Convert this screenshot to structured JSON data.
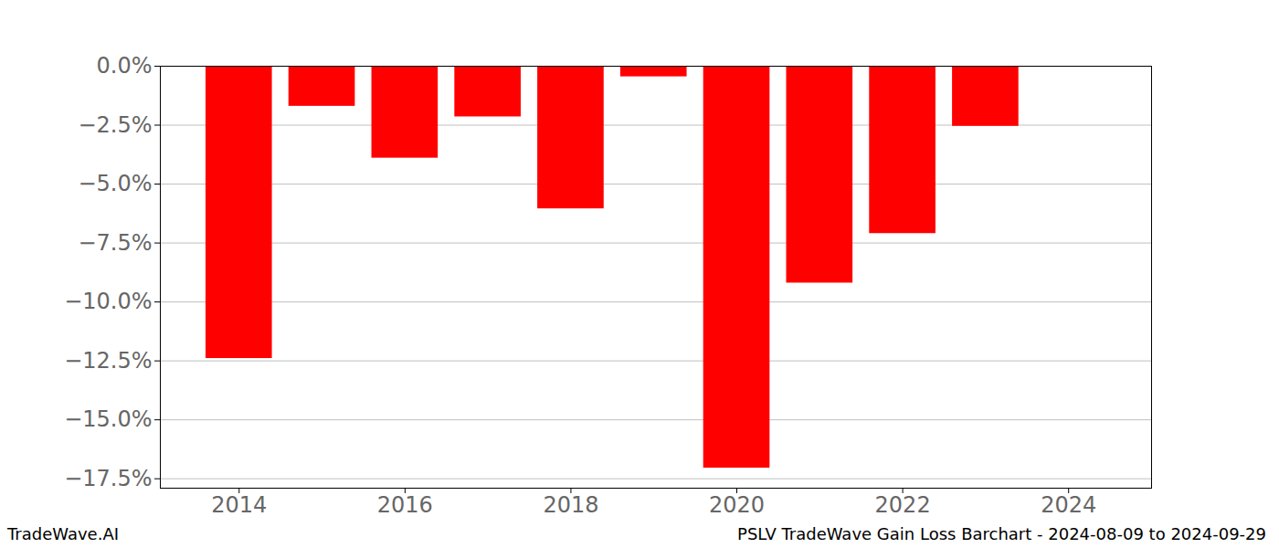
{
  "chart_data": {
    "type": "bar",
    "title": "PSLV TradeWave Gain Loss Barchart - 2024-08-09 to 2024-09-29",
    "watermark": "TradeWave.AI",
    "x": [
      2014,
      2015,
      2016,
      2017,
      2018,
      2019,
      2020,
      2021,
      2022,
      2023
    ],
    "values": [
      -12.4,
      -1.7,
      -3.9,
      -2.15,
      -6.05,
      -0.45,
      -17.05,
      -9.2,
      -7.1,
      -2.55
    ],
    "color": "#ff0000",
    "xlim": [
      2013.05,
      2025
    ],
    "xticks": [
      2014,
      2016,
      2018,
      2020,
      2022,
      2024
    ],
    "ylim": [
      -17.9,
      0
    ],
    "yticks": [
      {
        "value": 0,
        "label": "0.0%"
      },
      {
        "value": -2.5,
        "label": "−2.5%"
      },
      {
        "value": -5,
        "label": "−5.0%"
      },
      {
        "value": -7.5,
        "label": "−7.5%"
      },
      {
        "value": -10,
        "label": "−10.0%"
      },
      {
        "value": -12.5,
        "label": "−12.5%"
      },
      {
        "value": -15,
        "label": "−15.0%"
      },
      {
        "value": -17.5,
        "label": "−17.5%"
      }
    ],
    "grid": true
  }
}
